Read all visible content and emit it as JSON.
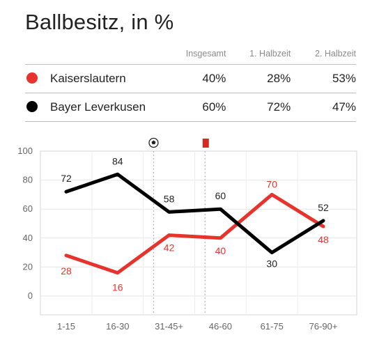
{
  "title": "Ballbesitz, in %",
  "table": {
    "headers": [
      "Insgesamt",
      "1. Halbzeit",
      "2. Halbzeit"
    ],
    "rows": [
      {
        "team": "Kaiserslautern",
        "color": "#e8322c",
        "values": [
          "40%",
          "28%",
          "53%"
        ]
      },
      {
        "team": "Bayer Leverkusen",
        "color": "#000000",
        "values": [
          "60%",
          "72%",
          "47%"
        ]
      }
    ]
  },
  "chart_data": {
    "type": "line",
    "categories": [
      "1-15",
      "16-30",
      "31-45+",
      "46-60",
      "61-75",
      "76-90+"
    ],
    "series": [
      {
        "name": "Kaiserslautern",
        "color": "#e8322c",
        "values": [
          28,
          16,
          42,
          40,
          70,
          48
        ]
      },
      {
        "name": "Bayer Leverkusen",
        "color": "#000000",
        "values": [
          72,
          84,
          58,
          60,
          30,
          52
        ]
      }
    ],
    "ylim": [
      0,
      100
    ],
    "yticks": [
      0,
      20,
      40,
      60,
      80,
      100
    ],
    "grid": true,
    "events": [
      {
        "icon": "soccer-ball-icon",
        "x": 1.7
      },
      {
        "icon": "red-card-icon",
        "x": 2.7,
        "color": "#d42a22"
      }
    ]
  }
}
